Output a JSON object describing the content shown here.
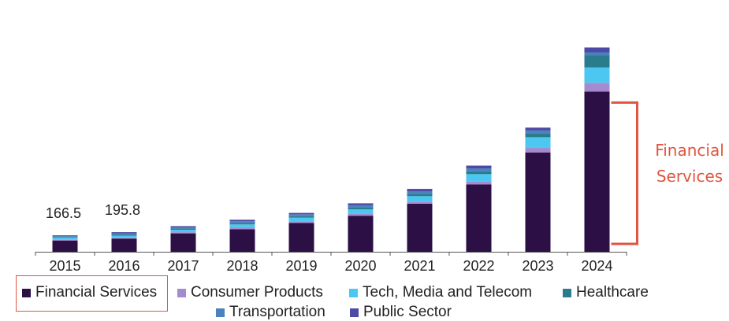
{
  "chart_data": {
    "type": "bar",
    "stacked": true,
    "categories": [
      "2015",
      "2016",
      "2017",
      "2018",
      "2019",
      "2020",
      "2021",
      "2022",
      "2023",
      "2024"
    ],
    "series": [
      {
        "name": "Financial Services",
        "color": "#2b0f45",
        "values": [
          28,
          33,
          46,
          56,
          72,
          90,
          120,
          168,
          248,
          400
        ]
      },
      {
        "name": "Consumer Products",
        "color": "#a48bd0",
        "values": [
          2,
          2,
          3,
          4,
          4,
          5,
          5,
          7,
          12,
          22
        ]
      },
      {
        "name": "Tech, Media and Telecom",
        "color": "#4cc7f2",
        "values": [
          5,
          5,
          6,
          8,
          9,
          11,
          14,
          19,
          26,
          38
        ]
      },
      {
        "name": "Healthcare",
        "color": "#2a7c8c",
        "values": [
          2,
          3,
          3,
          4,
          4,
          5,
          6,
          7,
          10,
          30
        ]
      },
      {
        "name": "Transportation",
        "color": "#4a82be",
        "values": [
          2,
          3,
          3,
          4,
          4,
          5,
          6,
          7,
          7,
          8
        ]
      },
      {
        "name": "Public Sector",
        "color": "#4d49a6",
        "values": [
          2,
          3,
          3,
          4,
          4,
          5,
          6,
          7,
          7,
          12
        ]
      }
    ],
    "data_labels": [
      {
        "category": "2015",
        "text": "166.5"
      },
      {
        "category": "2016",
        "text": "195.8"
      }
    ],
    "ylim": [
      0,
      550
    ],
    "grid": false,
    "legend_position": "bottom",
    "title": "",
    "xlabel": "",
    "ylabel": ""
  },
  "callout": {
    "line1": "Financial",
    "line2": "Services",
    "color": "#e0553f"
  }
}
